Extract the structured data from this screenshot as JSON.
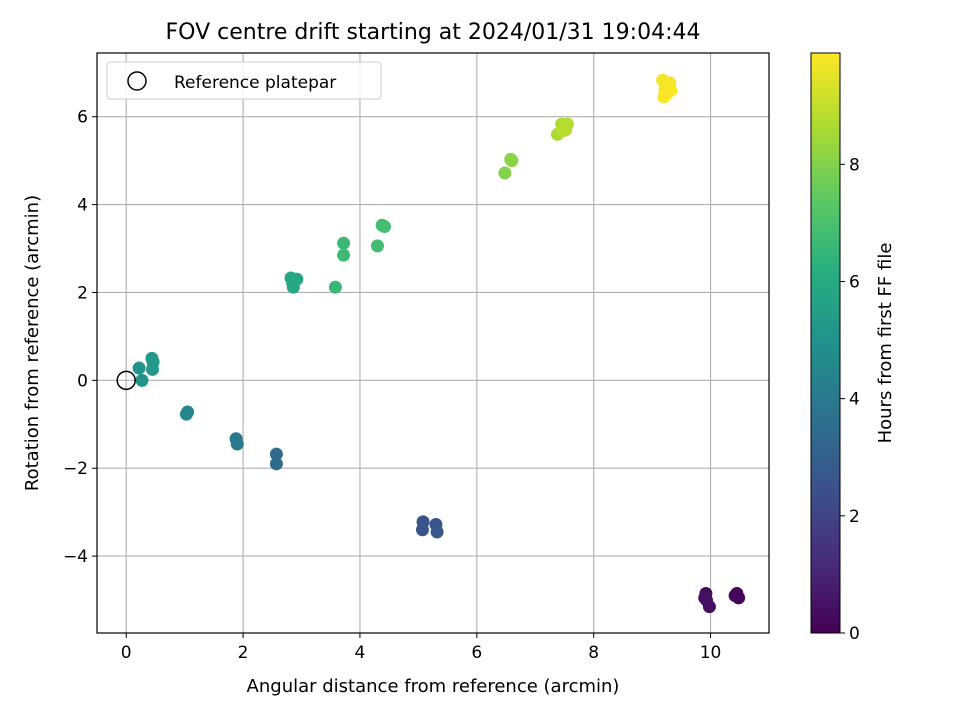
{
  "chart_data": {
    "type": "scatter",
    "title": "FOV centre drift starting at 2024/01/31 19:04:44",
    "xlabel": "Angular distance from reference (arcmin)",
    "ylabel": "Rotation from reference (arcmin)",
    "xlim": [
      -0.5,
      11.0
    ],
    "ylim": [
      -5.75,
      7.45
    ],
    "xticks": [
      0,
      2,
      4,
      6,
      8,
      10
    ],
    "yticks": [
      -4,
      -2,
      0,
      2,
      4,
      6
    ],
    "grid": true,
    "legend": {
      "placement": "top-left",
      "label": "Reference platepar"
    },
    "reference_point": {
      "x": 0,
      "y": 0
    },
    "colorbar": {
      "label": "Hours from first FF file",
      "min": 0,
      "max": 9.9,
      "ticks": [
        0,
        2,
        4,
        6,
        8
      ],
      "colormap": "viridis"
    },
    "points": [
      {
        "x": 10.45,
        "y": -4.85,
        "c": 0.05
      },
      {
        "x": 10.48,
        "y": -4.95,
        "c": 0.1
      },
      {
        "x": 10.42,
        "y": -4.9,
        "c": 0.15
      },
      {
        "x": 9.92,
        "y": -4.85,
        "c": 0.3
      },
      {
        "x": 9.93,
        "y": -5.0,
        "c": 0.35
      },
      {
        "x": 9.98,
        "y": -5.15,
        "c": 0.4
      },
      {
        "x": 9.9,
        "y": -4.95,
        "c": 0.45
      },
      {
        "x": 5.08,
        "y": -3.22,
        "c": 2.5
      },
      {
        "x": 5.07,
        "y": -3.4,
        "c": 2.55
      },
      {
        "x": 5.3,
        "y": -3.28,
        "c": 2.6
      },
      {
        "x": 5.32,
        "y": -3.45,
        "c": 2.65
      },
      {
        "x": 2.57,
        "y": -1.68,
        "c": 3.4
      },
      {
        "x": 2.57,
        "y": -1.9,
        "c": 3.45
      },
      {
        "x": 1.88,
        "y": -1.33,
        "c": 3.9
      },
      {
        "x": 1.9,
        "y": -1.45,
        "c": 3.95
      },
      {
        "x": 1.05,
        "y": -0.72,
        "c": 4.5
      },
      {
        "x": 1.03,
        "y": -0.77,
        "c": 4.55
      },
      {
        "x": 0.22,
        "y": 0.28,
        "c": 5.05
      },
      {
        "x": 0.27,
        "y": 0.0,
        "c": 5.1
      },
      {
        "x": 0.44,
        "y": 0.5,
        "c": 5.2
      },
      {
        "x": 0.46,
        "y": 0.42,
        "c": 5.25
      },
      {
        "x": 0.45,
        "y": 0.25,
        "c": 5.3
      },
      {
        "x": 2.82,
        "y": 2.33,
        "c": 5.8
      },
      {
        "x": 2.85,
        "y": 2.2,
        "c": 5.85
      },
      {
        "x": 2.92,
        "y": 2.3,
        "c": 5.9
      },
      {
        "x": 2.86,
        "y": 2.12,
        "c": 5.95
      },
      {
        "x": 3.58,
        "y": 2.12,
        "c": 6.6
      },
      {
        "x": 3.72,
        "y": 3.12,
        "c": 6.65
      },
      {
        "x": 3.72,
        "y": 2.85,
        "c": 6.7
      },
      {
        "x": 4.3,
        "y": 3.06,
        "c": 6.8
      },
      {
        "x": 4.38,
        "y": 3.53,
        "c": 6.85
      },
      {
        "x": 4.42,
        "y": 3.5,
        "c": 6.9
      },
      {
        "x": 6.48,
        "y": 4.72,
        "c": 8.0
      },
      {
        "x": 6.58,
        "y": 5.03,
        "c": 8.1
      },
      {
        "x": 6.6,
        "y": 5.0,
        "c": 8.15
      },
      {
        "x": 7.38,
        "y": 5.6,
        "c": 8.6
      },
      {
        "x": 7.45,
        "y": 5.83,
        "c": 8.65
      },
      {
        "x": 7.52,
        "y": 5.7,
        "c": 8.7
      },
      {
        "x": 7.55,
        "y": 5.83,
        "c": 8.75
      },
      {
        "x": 7.48,
        "y": 5.68,
        "c": 8.8
      },
      {
        "x": 9.18,
        "y": 6.83,
        "c": 9.7
      },
      {
        "x": 9.22,
        "y": 6.62,
        "c": 9.75
      },
      {
        "x": 9.2,
        "y": 6.45,
        "c": 9.8
      },
      {
        "x": 9.3,
        "y": 6.77,
        "c": 9.82
      },
      {
        "x": 9.32,
        "y": 6.6,
        "c": 9.85
      },
      {
        "x": 9.25,
        "y": 6.52,
        "c": 9.87
      }
    ]
  }
}
